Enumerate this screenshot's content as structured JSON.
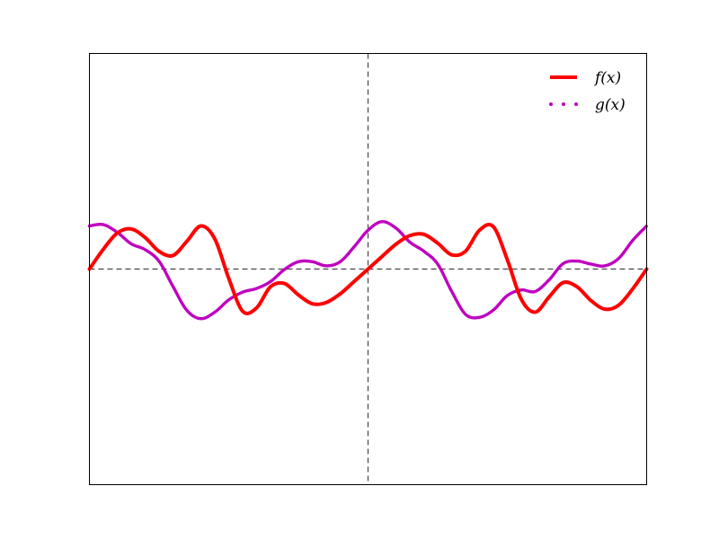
{
  "chart_data": {
    "type": "line",
    "title": "",
    "xlabel": "",
    "ylabel": "",
    "xlim": [
      -2,
      2
    ],
    "ylim": [
      -1,
      1
    ],
    "grid": false,
    "axis_ticks": false,
    "reference_lines": [
      {
        "orientation": "horizontal",
        "value": 0,
        "style": "dashed",
        "color": "#444444"
      },
      {
        "orientation": "vertical",
        "value": 0,
        "style": "dashed",
        "color": "#444444"
      }
    ],
    "legend": {
      "placement": "top-right",
      "frame": false
    },
    "series": [
      {
        "name": "f(x)",
        "style": "solid",
        "color": "#ff0000",
        "x": [
          -2.0,
          -1.9,
          -1.8,
          -1.7,
          -1.6,
          -1.5,
          -1.4,
          -1.3,
          -1.2,
          -1.1,
          -1.0,
          -0.9,
          -0.8,
          -0.7,
          -0.6,
          -0.5,
          -0.4,
          -0.3,
          -0.2,
          -0.1,
          0.0,
          0.1,
          0.2,
          0.3,
          0.4,
          0.5,
          0.6,
          0.7,
          0.8,
          0.9,
          1.0,
          1.1,
          1.2,
          1.3,
          1.4,
          1.5,
          1.6,
          1.7,
          1.8,
          1.9,
          2.0
        ],
        "y": [
          0.0,
          0.092,
          0.167,
          0.186,
          0.146,
          0.082,
          0.063,
          0.129,
          0.2,
          0.14,
          -0.043,
          -0.196,
          -0.18,
          -0.082,
          -0.067,
          -0.12,
          -0.161,
          -0.155,
          -0.115,
          -0.058,
          0.0,
          0.058,
          0.115,
          0.155,
          0.161,
          0.12,
          0.066,
          0.083,
          0.18,
          0.196,
          0.043,
          -0.14,
          -0.2,
          -0.129,
          -0.063,
          -0.082,
          -0.146,
          -0.186,
          -0.167,
          -0.092,
          0.0
        ]
      },
      {
        "name": "g(x)",
        "style": "dotted",
        "color": "#bf00bf",
        "x": [
          -2.0,
          -1.9,
          -1.8,
          -1.7,
          -1.6,
          -1.5,
          -1.4,
          -1.3,
          -1.2,
          -1.1,
          -1.0,
          -0.9,
          -0.8,
          -0.7,
          -0.6,
          -0.5,
          -0.4,
          -0.3,
          -0.2,
          -0.1,
          0.0,
          0.1,
          0.2,
          0.3,
          0.4,
          0.5,
          0.6,
          0.7,
          0.8,
          0.9,
          1.0,
          1.1,
          1.2,
          1.3,
          1.4,
          1.5,
          1.6,
          1.7,
          1.8,
          1.9,
          2.0
        ],
        "y": [
          0.2,
          0.206,
          0.17,
          0.117,
          0.09,
          0.036,
          -0.081,
          -0.192,
          -0.23,
          -0.2,
          -0.143,
          -0.107,
          -0.09,
          -0.058,
          -0.002,
          0.034,
          0.034,
          0.015,
          0.034,
          0.103,
          0.18,
          0.22,
          0.19,
          0.125,
          0.083,
          0.023,
          -0.103,
          -0.21,
          -0.224,
          -0.19,
          -0.123,
          -0.097,
          -0.104,
          -0.05,
          0.025,
          0.037,
          0.023,
          0.015,
          0.05,
          0.133,
          0.2
        ]
      }
    ]
  }
}
